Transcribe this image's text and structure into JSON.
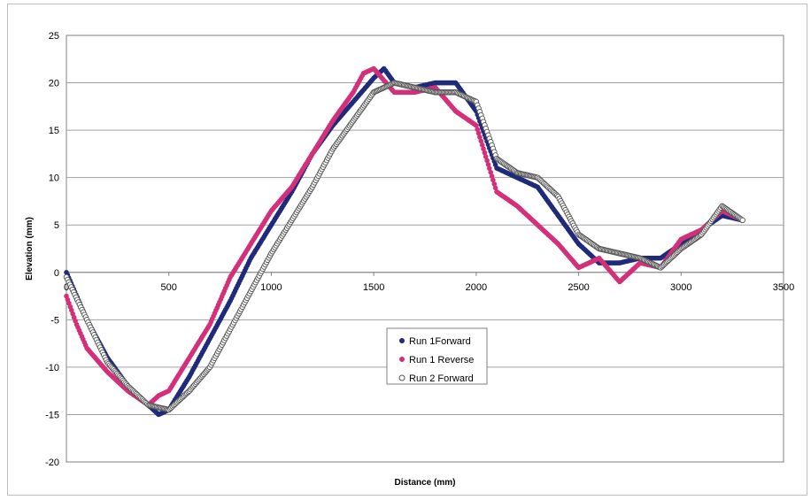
{
  "chart_data": {
    "type": "scatter",
    "xlabel": "Distance (mm)",
    "ylabel": "Elevation (mm)",
    "xlim": [
      0,
      3500
    ],
    "ylim": [
      -20,
      25
    ],
    "xticks": [
      0,
      500,
      1000,
      1500,
      2000,
      2500,
      3000,
      3500
    ],
    "yticks": [
      -20,
      -15,
      -10,
      -5,
      0,
      5,
      10,
      15,
      20,
      25
    ],
    "xtick_labels": [
      "0",
      "500",
      "1000",
      "1500",
      "2000",
      "2500",
      "3000",
      "3500"
    ],
    "ytick_labels": [
      "-20",
      "-15",
      "-10",
      "-5",
      "0",
      "5",
      "10",
      "15",
      "20",
      "25"
    ],
    "grid": "horizontal",
    "legend_position": "center",
    "series": [
      {
        "name": "Run 1Forward",
        "color": "#1f2a7a",
        "marker": "filled-circle",
        "x": [
          0,
          100,
          200,
          300,
          400,
          450,
          500,
          600,
          700,
          800,
          900,
          1000,
          1100,
          1200,
          1300,
          1400,
          1500,
          1550,
          1600,
          1700,
          1800,
          1900,
          2000,
          2100,
          2200,
          2300,
          2400,
          2500,
          2600,
          2700,
          2800,
          2900,
          3000,
          3100,
          3200,
          3300
        ],
        "y": [
          0,
          -5,
          -9,
          -12,
          -14,
          -15,
          -14.5,
          -11,
          -7,
          -3,
          1.5,
          5,
          8.5,
          12.5,
          15.5,
          18,
          20.5,
          21.5,
          20,
          19.5,
          20,
          20,
          17,
          11,
          10,
          9,
          6,
          3,
          1,
          1,
          1.5,
          1.5,
          3,
          4.5,
          6,
          5.5
        ]
      },
      {
        "name": "Run 1 Reverse",
        "color": "#d4307a",
        "marker": "filled-circle",
        "x": [
          0,
          50,
          100,
          200,
          300,
          400,
          450,
          500,
          600,
          700,
          800,
          900,
          1000,
          1100,
          1200,
          1300,
          1400,
          1450,
          1500,
          1600,
          1700,
          1800,
          1900,
          2000,
          2100,
          2200,
          2300,
          2400,
          2500,
          2600,
          2700,
          2800,
          2900,
          3000,
          3100,
          3200,
          3300
        ],
        "y": [
          -2.5,
          -5.5,
          -8,
          -10.5,
          -12.5,
          -14,
          -13,
          -12.5,
          -9,
          -5.5,
          -0.5,
          3,
          6.5,
          9,
          12.5,
          16,
          19,
          21,
          21.5,
          19,
          19,
          19.5,
          17,
          15.5,
          8.5,
          7,
          5,
          3,
          0.5,
          1.5,
          -1,
          1,
          0.5,
          3.5,
          4.5,
          6.5,
          5.5
        ]
      },
      {
        "name": "Run 2 Forward",
        "color": "#555555",
        "marker": "open-circle",
        "x": [
          0,
          100,
          200,
          300,
          400,
          500,
          600,
          700,
          800,
          900,
          1000,
          1100,
          1200,
          1300,
          1400,
          1500,
          1600,
          1700,
          1800,
          1900,
          2000,
          2100,
          2200,
          2300,
          2400,
          2500,
          2600,
          2700,
          2800,
          2900,
          3000,
          3100,
          3200,
          3300
        ],
        "y": [
          -0.5,
          -5,
          -9.5,
          -12,
          -14,
          -14.5,
          -12.5,
          -10,
          -6,
          -2,
          2,
          5.5,
          9,
          13,
          16,
          19,
          20,
          19.5,
          19,
          19,
          18,
          12,
          10.5,
          10,
          8,
          4,
          2.5,
          2,
          1.5,
          0.5,
          2.5,
          4,
          7,
          5.5
        ]
      }
    ]
  }
}
